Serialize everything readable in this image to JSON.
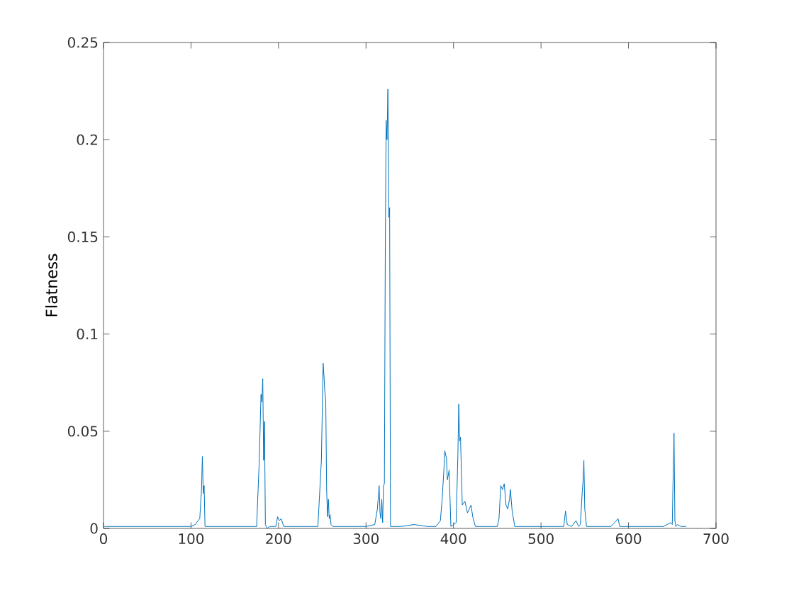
{
  "chart_data": {
    "type": "line",
    "ylabel": "Flatness",
    "xlim": [
      0,
      700
    ],
    "ylim": [
      0,
      0.25
    ],
    "xticks": [
      0,
      100,
      200,
      300,
      400,
      500,
      600,
      700
    ],
    "yticks": [
      0,
      0.05,
      0.1,
      0.15,
      0.2,
      0.25
    ],
    "series": [
      {
        "color": "#0072bd",
        "x": [
          1,
          10,
          20,
          30,
          40,
          50,
          60,
          70,
          80,
          90,
          100,
          105,
          108,
          110,
          112,
          113,
          114,
          115,
          116,
          118,
          125,
          140,
          160,
          175,
          178,
          180,
          181,
          182,
          183,
          184,
          185,
          186,
          187,
          190,
          197,
          199,
          201,
          203,
          206,
          215,
          230,
          245,
          249,
          251,
          252,
          253,
          254,
          255,
          256,
          257,
          258,
          259,
          260,
          262,
          270,
          285,
          300,
          310,
          313,
          315,
          316,
          317,
          318,
          319,
          320,
          321,
          322,
          323,
          324,
          325,
          326,
          327,
          328,
          330,
          340,
          355,
          370,
          380,
          385,
          387,
          389,
          390,
          392,
          393,
          395,
          397,
          400,
          403,
          405,
          406,
          407,
          408,
          410,
          413,
          416,
          418,
          420,
          422,
          425,
          440,
          450,
          452,
          454,
          456,
          458,
          460,
          462,
          464,
          465,
          467,
          470,
          490,
          510,
          526,
          528,
          530,
          535,
          540,
          543,
          545,
          547,
          548,
          549,
          550,
          552,
          560,
          580,
          588,
          590,
          600,
          620,
          640,
          648,
          650,
          651,
          652,
          653,
          654,
          656,
          660,
          666
        ],
        "values": [
          0.001,
          0.001,
          0.001,
          0.001,
          0.001,
          0.001,
          0.001,
          0.001,
          0.001,
          0.001,
          0.001,
          0.002,
          0.004,
          0.005,
          0.02,
          0.037,
          0.018,
          0.022,
          0.001,
          0.001,
          0.001,
          0.001,
          0.001,
          0.001,
          0.035,
          0.069,
          0.065,
          0.077,
          0.035,
          0.055,
          0.002,
          0.001,
          0,
          0.001,
          0.001,
          0.006,
          0.004,
          0.005,
          0.001,
          0.001,
          0.001,
          0.001,
          0.035,
          0.085,
          0.078,
          0.07,
          0.066,
          0.02,
          0.006,
          0.015,
          0.005,
          0.007,
          0.002,
          0.001,
          0.001,
          0.001,
          0.001,
          0.002,
          0.01,
          0.022,
          0.008,
          0.005,
          0.015,
          0.003,
          0.022,
          0.023,
          0.14,
          0.21,
          0.2,
          0.226,
          0.16,
          0.165,
          0.001,
          0.001,
          0.001,
          0.002,
          0.001,
          0.001,
          0.004,
          0.015,
          0.03,
          0.04,
          0.036,
          0.025,
          0.03,
          0.001,
          0.002,
          0.003,
          0.038,
          0.064,
          0.045,
          0.047,
          0.012,
          0.014,
          0.008,
          0.01,
          0.012,
          0.006,
          0.001,
          0.001,
          0.001,
          0.005,
          0.022,
          0.02,
          0.023,
          0.012,
          0.01,
          0.015,
          0.02,
          0.009,
          0.001,
          0.001,
          0.001,
          0.001,
          0.009,
          0.002,
          0.001,
          0.004,
          0.001,
          0.002,
          0.018,
          0.024,
          0.035,
          0.01,
          0.001,
          0.001,
          0.001,
          0.005,
          0.001,
          0.001,
          0.001,
          0.001,
          0.003,
          0.002,
          0.027,
          0.049,
          0.004,
          0.001,
          0.002,
          0.001,
          0.001
        ]
      }
    ]
  }
}
